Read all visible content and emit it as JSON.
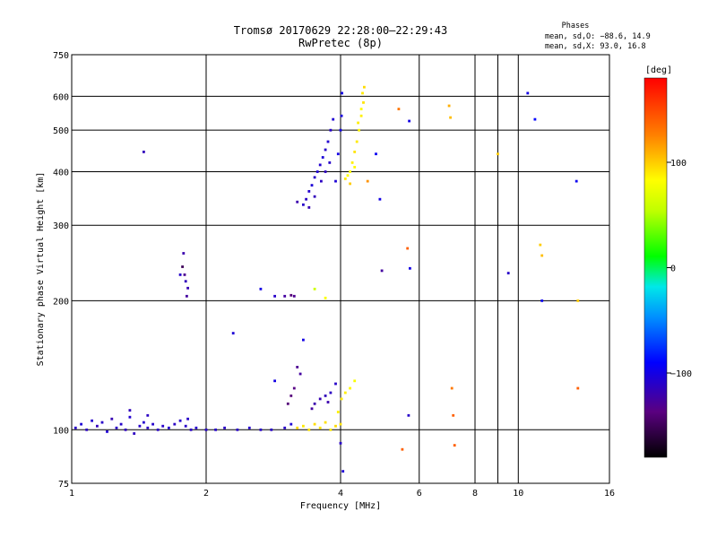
{
  "chart_data": {
    "type": "scatter",
    "title": "Tromsø 20170629 22:28:00–22:29:43",
    "subtitle": "RwPretec (8p)",
    "xlabel": "Frequency [MHz]",
    "ylabel": "Stationary phase Virtual Height [km]",
    "xscale": "log2",
    "yscale": "log",
    "xlim": [
      1,
      16
    ],
    "ylim": [
      75,
      750
    ],
    "xticks": [
      1,
      2,
      4,
      6,
      8,
      9,
      10,
      16
    ],
    "xtick_labels": [
      "1",
      "2",
      "4",
      "6",
      "8",
      "10",
      "16"
    ],
    "xtick_label_values": [
      1,
      2,
      4,
      6,
      8,
      10,
      16
    ],
    "yticks": [
      75,
      100,
      200,
      300,
      400,
      500,
      600,
      750
    ],
    "ytick_labels": [
      "75",
      "100",
      "200",
      "300",
      "400",
      "500",
      "600",
      "750"
    ],
    "grid": true,
    "colorbar": {
      "label": "[deg]",
      "range": [
        -180,
        180
      ],
      "ticks": [
        100,
        0,
        -100
      ],
      "tick_labels": [
        "100",
        "0",
        "−100"
      ]
    },
    "stats": {
      "header": "Phases",
      "o_line": "mean, sd,O: −88.6, 14.9",
      "x_line": "mean, sd,X:  93.0, 16.8"
    },
    "points": [
      {
        "f": 1.02,
        "h": 101,
        "p": -110
      },
      {
        "f": 1.05,
        "h": 103,
        "p": -105
      },
      {
        "f": 1.08,
        "h": 100,
        "p": -112
      },
      {
        "f": 1.11,
        "h": 105,
        "p": -108
      },
      {
        "f": 1.14,
        "h": 102,
        "p": -115
      },
      {
        "f": 1.17,
        "h": 104,
        "p": -110
      },
      {
        "f": 1.2,
        "h": 99,
        "p": -106
      },
      {
        "f": 1.23,
        "h": 106,
        "p": -118
      },
      {
        "f": 1.26,
        "h": 101,
        "p": -111
      },
      {
        "f": 1.29,
        "h": 103,
        "p": -109
      },
      {
        "f": 1.32,
        "h": 100,
        "p": -114
      },
      {
        "f": 1.35,
        "h": 107,
        "p": -107
      },
      {
        "f": 1.38,
        "h": 98,
        "p": -113
      },
      {
        "f": 1.42,
        "h": 102,
        "p": -110
      },
      {
        "f": 1.45,
        "h": 104,
        "p": -108
      },
      {
        "f": 1.48,
        "h": 101,
        "p": -112
      },
      {
        "f": 1.52,
        "h": 103,
        "p": -109
      },
      {
        "f": 1.56,
        "h": 100,
        "p": -111
      },
      {
        "f": 1.6,
        "h": 102,
        "p": -110
      },
      {
        "f": 1.65,
        "h": 101,
        "p": -108
      },
      {
        "f": 1.7,
        "h": 103,
        "p": -112
      },
      {
        "f": 1.75,
        "h": 105,
        "p": -109
      },
      {
        "f": 1.8,
        "h": 102,
        "p": -110
      },
      {
        "f": 1.85,
        "h": 100,
        "p": -111
      },
      {
        "f": 1.9,
        "h": 101,
        "p": -108
      },
      {
        "f": 2.0,
        "h": 100,
        "p": -110
      },
      {
        "f": 2.1,
        "h": 100,
        "p": -109
      },
      {
        "f": 2.2,
        "h": 101,
        "p": -111
      },
      {
        "f": 2.35,
        "h": 100,
        "p": -110
      },
      {
        "f": 2.5,
        "h": 101,
        "p": -108
      },
      {
        "f": 2.65,
        "h": 100,
        "p": -109
      },
      {
        "f": 2.8,
        "h": 100,
        "p": -111
      },
      {
        "f": 3.0,
        "h": 101,
        "p": -110
      },
      {
        "f": 3.1,
        "h": 103,
        "p": -105
      },
      {
        "f": 1.35,
        "h": 111,
        "p": -115
      },
      {
        "f": 1.48,
        "h": 108,
        "p": -112
      },
      {
        "f": 1.82,
        "h": 106,
        "p": -110
      },
      {
        "f": 3.2,
        "h": 101,
        "p": 95
      },
      {
        "f": 3.3,
        "h": 102,
        "p": 90
      },
      {
        "f": 3.4,
        "h": 100,
        "p": 92
      },
      {
        "f": 3.5,
        "h": 103,
        "p": 94
      },
      {
        "f": 3.6,
        "h": 101,
        "p": 91
      },
      {
        "f": 3.7,
        "h": 104,
        "p": 93
      },
      {
        "f": 3.8,
        "h": 100,
        "p": 90
      },
      {
        "f": 3.9,
        "h": 102,
        "p": 95
      },
      {
        "f": 4.0,
        "h": 103,
        "p": 92
      },
      {
        "f": 3.95,
        "h": 110,
        "p": 88
      },
      {
        "f": 4.02,
        "h": 118,
        "p": 90
      },
      {
        "f": 4.2,
        "h": 125,
        "p": 85
      },
      {
        "f": 4.3,
        "h": 130,
        "p": 80
      },
      {
        "f": 4.1,
        "h": 122,
        "p": 88
      },
      {
        "f": 3.05,
        "h": 115,
        "p": -140
      },
      {
        "f": 3.15,
        "h": 125,
        "p": -135
      },
      {
        "f": 3.2,
        "h": 140,
        "p": -130
      },
      {
        "f": 3.25,
        "h": 135,
        "p": -125
      },
      {
        "f": 3.1,
        "h": 120,
        "p": -138
      },
      {
        "f": 3.5,
        "h": 115,
        "p": -120
      },
      {
        "f": 3.6,
        "h": 118,
        "p": -118
      },
      {
        "f": 3.7,
        "h": 120,
        "p": -115
      },
      {
        "f": 3.8,
        "h": 122,
        "p": -112
      },
      {
        "f": 3.9,
        "h": 128,
        "p": -110
      },
      {
        "f": 3.45,
        "h": 112,
        "p": -125
      },
      {
        "f": 3.75,
        "h": 116,
        "p": -120
      },
      {
        "f": 3.15,
        "h": 205,
        "p": -130
      },
      {
        "f": 3.1,
        "h": 206,
        "p": -140
      },
      {
        "f": 3.0,
        "h": 205,
        "p": -125
      },
      {
        "f": 2.85,
        "h": 205,
        "p": -110
      },
      {
        "f": 2.65,
        "h": 213,
        "p": -100
      },
      {
        "f": 3.5,
        "h": 213,
        "p": 60
      },
      {
        "f": 3.7,
        "h": 203,
        "p": 80
      },
      {
        "f": 1.78,
        "h": 258,
        "p": -120
      },
      {
        "f": 1.77,
        "h": 240,
        "p": -150
      },
      {
        "f": 1.79,
        "h": 230,
        "p": -130
      },
      {
        "f": 1.8,
        "h": 222,
        "p": -115
      },
      {
        "f": 1.82,
        "h": 214,
        "p": -118
      },
      {
        "f": 1.81,
        "h": 205,
        "p": -125
      },
      {
        "f": 1.75,
        "h": 230,
        "p": -110
      },
      {
        "f": 3.3,
        "h": 335,
        "p": -110
      },
      {
        "f": 3.35,
        "h": 345,
        "p": -112
      },
      {
        "f": 3.4,
        "h": 360,
        "p": -108
      },
      {
        "f": 3.45,
        "h": 372,
        "p": -105
      },
      {
        "f": 3.5,
        "h": 388,
        "p": -110
      },
      {
        "f": 3.55,
        "h": 400,
        "p": -106
      },
      {
        "f": 3.6,
        "h": 415,
        "p": -108
      },
      {
        "f": 3.65,
        "h": 432,
        "p": -104
      },
      {
        "f": 3.7,
        "h": 450,
        "p": -110
      },
      {
        "f": 3.75,
        "h": 470,
        "p": -107
      },
      {
        "f": 3.8,
        "h": 500,
        "p": -109
      },
      {
        "f": 3.85,
        "h": 530,
        "p": -106
      },
      {
        "f": 3.4,
        "h": 330,
        "p": -118
      },
      {
        "f": 3.5,
        "h": 350,
        "p": -115
      },
      {
        "f": 3.62,
        "h": 380,
        "p": -112
      },
      {
        "f": 3.7,
        "h": 400,
        "p": -114
      },
      {
        "f": 3.78,
        "h": 420,
        "p": -110
      },
      {
        "f": 3.9,
        "h": 380,
        "p": -105
      },
      {
        "f": 3.95,
        "h": 440,
        "p": -100
      },
      {
        "f": 4.0,
        "h": 500,
        "p": -98
      },
      {
        "f": 4.02,
        "h": 540,
        "p": -102
      },
      {
        "f": 4.03,
        "h": 610,
        "p": -100
      },
      {
        "f": 3.2,
        "h": 340,
        "p": -120
      },
      {
        "f": 4.1,
        "h": 385,
        "p": 90
      },
      {
        "f": 4.2,
        "h": 400,
        "p": 85
      },
      {
        "f": 4.25,
        "h": 420,
        "p": 88
      },
      {
        "f": 4.3,
        "h": 445,
        "p": 92
      },
      {
        "f": 4.35,
        "h": 470,
        "p": 90
      },
      {
        "f": 4.4,
        "h": 500,
        "p": 86
      },
      {
        "f": 4.45,
        "h": 540,
        "p": 88
      },
      {
        "f": 4.5,
        "h": 580,
        "p": 92
      },
      {
        "f": 4.52,
        "h": 630,
        "p": 95
      },
      {
        "f": 4.48,
        "h": 610,
        "p": 90
      },
      {
        "f": 4.45,
        "h": 560,
        "p": 84
      },
      {
        "f": 4.38,
        "h": 520,
        "p": 89
      },
      {
        "f": 4.3,
        "h": 410,
        "p": 85
      },
      {
        "f": 4.15,
        "h": 392,
        "p": 82
      },
      {
        "f": 4.6,
        "h": 380,
        "p": 120
      },
      {
        "f": 4.2,
        "h": 375,
        "p": 100
      },
      {
        "f": 4.9,
        "h": 345,
        "p": -100
      },
      {
        "f": 4.95,
        "h": 235,
        "p": -125
      },
      {
        "f": 4.8,
        "h": 440,
        "p": -95
      },
      {
        "f": 5.4,
        "h": 560,
        "p": 130
      },
      {
        "f": 5.7,
        "h": 525,
        "p": -100
      },
      {
        "f": 5.65,
        "h": 265,
        "p": 140
      },
      {
        "f": 5.72,
        "h": 238,
        "p": -100
      },
      {
        "f": 5.68,
        "h": 108,
        "p": -110
      },
      {
        "f": 5.5,
        "h": 90,
        "p": 140
      },
      {
        "f": 7.0,
        "h": 570,
        "p": 110
      },
      {
        "f": 7.05,
        "h": 535,
        "p": 105
      },
      {
        "f": 7.1,
        "h": 125,
        "p": 130
      },
      {
        "f": 7.15,
        "h": 108,
        "p": 140
      },
      {
        "f": 7.2,
        "h": 92,
        "p": 140
      },
      {
        "f": 9.0,
        "h": 440,
        "p": 100
      },
      {
        "f": 9.5,
        "h": 232,
        "p": -110
      },
      {
        "f": 10.5,
        "h": 610,
        "p": -100
      },
      {
        "f": 10.9,
        "h": 530,
        "p": -90
      },
      {
        "f": 11.2,
        "h": 270,
        "p": 100
      },
      {
        "f": 11.3,
        "h": 255,
        "p": 105
      },
      {
        "f": 11.3,
        "h": 200,
        "p": -95
      },
      {
        "f": 13.5,
        "h": 380,
        "p": -95
      },
      {
        "f": 13.6,
        "h": 200,
        "p": 100
      },
      {
        "f": 13.6,
        "h": 125,
        "p": 140
      },
      {
        "f": 1.45,
        "h": 445,
        "p": -115
      },
      {
        "f": 2.3,
        "h": 168,
        "p": -105
      },
      {
        "f": 2.85,
        "h": 130,
        "p": -100
      },
      {
        "f": 3.3,
        "h": 162,
        "p": -100
      },
      {
        "f": 4.0,
        "h": 93,
        "p": -110
      },
      {
        "f": 4.05,
        "h": 80,
        "p": -105
      }
    ]
  }
}
